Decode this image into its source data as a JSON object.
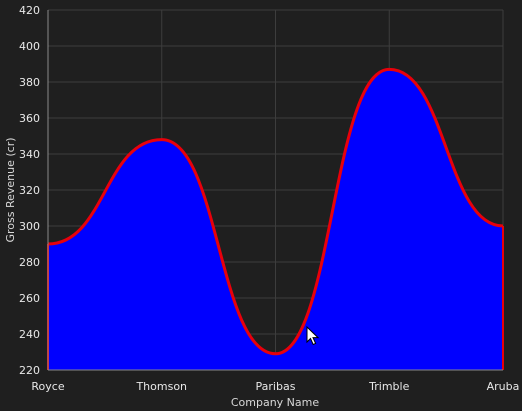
{
  "chart_data": {
    "type": "area",
    "categories": [
      "Royce",
      "Thomson",
      "Paribas",
      "Trimble",
      "Aruba"
    ],
    "series": [
      {
        "values": [
          290,
          348,
          229,
          387,
          300
        ],
        "fill_color": "#0000ff",
        "line_color": "#e8000b"
      }
    ],
    "xlabel": "Company Name",
    "ylabel": "Gross Revenue (cr)",
    "ylim": [
      220,
      420
    ],
    "yticks": [
      220,
      240,
      260,
      280,
      300,
      320,
      340,
      360,
      380,
      400,
      420
    ],
    "grid": true,
    "smooth": true
  },
  "colors": {
    "background": "#1f1f1f",
    "grid": "#3d3d3d",
    "text": "#e8e8e8"
  },
  "cursor": {
    "icon": "arrow-cursor-icon"
  }
}
